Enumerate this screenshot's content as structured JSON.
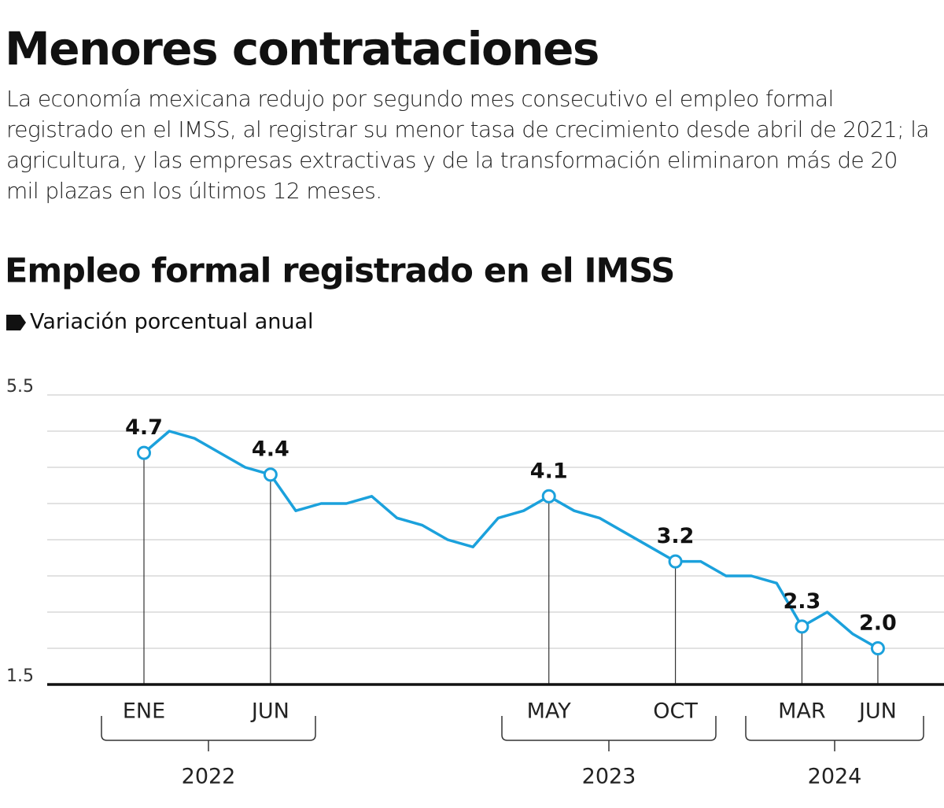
{
  "title": "Menores contrataciones",
  "description": "La economía mexicana redujo por segundo mes consecutivo el empleo formal registrado en el IMSS, al registrar su menor tasa de crecimiento desde abril de 2021; la agricultura, y las empresas extractivas y de la transformación eliminaron más de 20 mil plazas en los últimos 12 meses.",
  "chart_data": {
    "type": "line",
    "title": "Empleo formal registrado en el IMSS",
    "series": [
      {
        "name": "Variación porcentual anual",
        "color": "#1ba1dc",
        "values": [
          4.7,
          5.0,
          4.9,
          4.7,
          4.5,
          4.4,
          3.9,
          4.0,
          4.0,
          4.1,
          3.8,
          3.7,
          3.5,
          3.4,
          3.8,
          3.9,
          4.1,
          3.9,
          3.8,
          3.6,
          3.4,
          3.2,
          3.2,
          3.0,
          3.0,
          2.9,
          2.3,
          2.5,
          2.2,
          2.0
        ],
        "value_labels": [
          "4.7",
          null,
          null,
          null,
          null,
          "4.4",
          null,
          null,
          null,
          null,
          null,
          null,
          null,
          null,
          null,
          null,
          "4.1",
          null,
          null,
          null,
          null,
          "3.2",
          null,
          null,
          null,
          null,
          "2.3",
          null,
          null,
          "2.0"
        ]
      }
    ],
    "categories": [
      "ENE",
      null,
      null,
      null,
      null,
      "JUN",
      null,
      null,
      null,
      null,
      null,
      null,
      null,
      null,
      null,
      null,
      "MAY",
      null,
      null,
      null,
      null,
      "OCT",
      null,
      null,
      null,
      null,
      "MAR",
      null,
      null,
      "JUN"
    ],
    "years": [
      "2022",
      "2023",
      "2024"
    ],
    "ylim": [
      1.5,
      5.5
    ],
    "yticks": [
      1.5,
      2,
      2.5,
      3,
      3.5,
      4,
      4.5,
      5,
      5.5
    ],
    "grid": true
  }
}
